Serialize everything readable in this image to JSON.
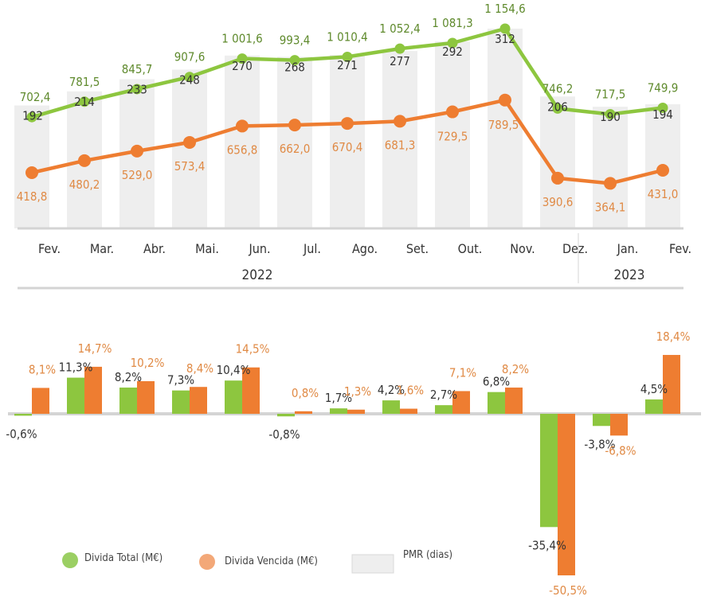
{
  "colors": {
    "total": "#8dc63f",
    "vencida": "#ee7d31",
    "pmr": "#eeeeee",
    "axis": "#d4d4d4",
    "total_label": "#5f8a2d",
    "vencida_label": "#e08a45",
    "pmr_label": "#333333",
    "text": "#333333"
  },
  "chart_data": [
    {
      "type": "line",
      "categories": [
        "Fev.",
        "Mar.",
        "Abr.",
        "Mai.",
        "Jun.",
        "Jul.",
        "Ago.",
        "Set.",
        "Out.",
        "Nov.",
        "Dez.",
        "Jan.",
        "Fev."
      ],
      "years": [
        {
          "label": "2022",
          "from": 0,
          "to": 10
        },
        {
          "label": "2023",
          "from": 11,
          "to": 12
        }
      ],
      "series": [
        {
          "name": "Divida Total (M€)",
          "values": [
            702.4,
            781.5,
            845.7,
            907.6,
            1001.6,
            993.4,
            1010.4,
            1052.4,
            1081.3,
            1154.6,
            746.2,
            717.5,
            749.9
          ],
          "labels": [
            "702,4",
            "781,5",
            "845,7",
            "907,6",
            "1 001,6",
            "993,4",
            "1 010,4",
            "1 052,4",
            "1 081,3",
            "1 154,6",
            "746,2",
            "717,5",
            "749,9"
          ]
        },
        {
          "name": "Divida Vencida (M€)",
          "values": [
            418.8,
            480.2,
            529.0,
            573.4,
            656.8,
            662.0,
            670.4,
            681.3,
            729.5,
            789.5,
            390.6,
            364.1,
            431.0
          ],
          "labels": [
            "418,8",
            "480,2",
            "529,0",
            "573,4",
            "656,8",
            "662,0",
            "670,4",
            "681,3",
            "729,5",
            "789,5",
            "390,6",
            "364,1",
            "431,0"
          ]
        },
        {
          "name": "PMR (dias)",
          "type": "bar",
          "values": [
            192,
            214,
            233,
            248,
            270,
            268,
            271,
            277,
            292,
            312,
            206,
            190,
            194
          ],
          "labels": [
            "192",
            "214",
            "233",
            "248",
            "270",
            "268",
            "271",
            "277",
            "292",
            "312",
            "206",
            "190",
            "194"
          ]
        }
      ]
    },
    {
      "type": "bar",
      "series": [
        {
          "name": "Divida Total (M€)",
          "values": [
            -0.6,
            11.3,
            8.2,
            7.3,
            10.4,
            -0.8,
            1.7,
            4.2,
            2.7,
            6.8,
            -35.4,
            -3.8,
            4.5
          ],
          "labels": [
            "-0,6%",
            "11,3%",
            "8,2%",
            "7,3%",
            "10,4%",
            "-0,8%",
            "1,7%",
            "4,2%",
            "2,7%",
            "6,8%",
            "-35,4%",
            "-3,8%",
            "4,5%"
          ]
        },
        {
          "name": "Divida Vencida (M€)",
          "values": [
            8.1,
            14.7,
            10.2,
            8.4,
            14.5,
            0.8,
            1.3,
            1.6,
            7.1,
            8.2,
            -50.5,
            -6.8,
            18.4
          ],
          "labels": [
            "8,1%",
            "14,7%",
            "10,2%",
            "8,4%",
            "14,5%",
            "0,8%",
            "1,3%",
            "1,6%",
            "7,1%",
            "8,2%",
            "-50,5%",
            "-6,8%",
            "18,4%"
          ]
        }
      ]
    }
  ],
  "legend": [
    {
      "label": "Divida Total (M€)"
    },
    {
      "label": "Divida Vencida (M€)"
    },
    {
      "label": "PMR (dias)"
    }
  ]
}
